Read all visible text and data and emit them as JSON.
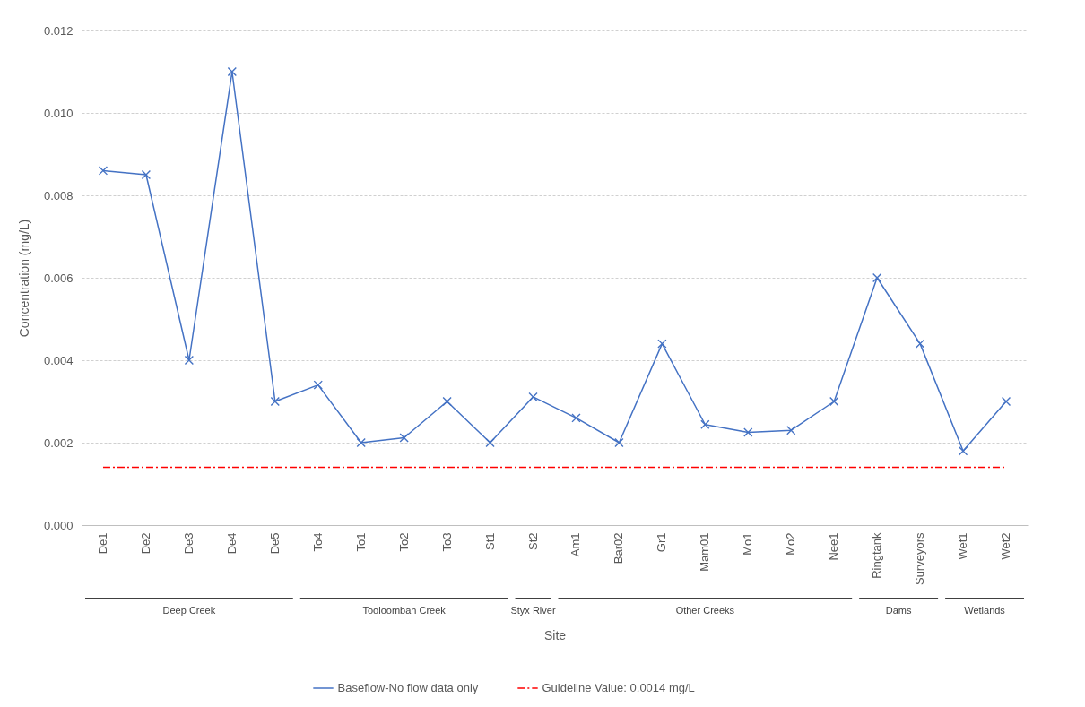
{
  "chart_data": {
    "type": "line",
    "categories": [
      "De1",
      "De2",
      "De3",
      "De4",
      "De5",
      "To4",
      "To1",
      "To2",
      "To3",
      "St1",
      "St2",
      "Am1",
      "Bar02",
      "Gr1",
      "Mam01",
      "Mo1",
      "Mo2",
      "Nee1",
      "Ringtank",
      "Surveyors",
      "Wet1",
      "Wet2"
    ],
    "series": [
      {
        "name": "Baseflow-No flow data only",
        "color": "#4472c4",
        "values": [
          0.0086,
          0.0085,
          0.004,
          0.011,
          0.003,
          0.0034,
          0.002,
          0.00212,
          0.003,
          0.002,
          0.00311,
          0.0026,
          0.002,
          0.0044,
          0.00244,
          0.00225,
          0.0023,
          0.003,
          0.006,
          0.0044,
          0.0018,
          0.003
        ]
      }
    ],
    "xlabel": "Site",
    "ylabel": "Concentration (mg/L)",
    "ylim": [
      0,
      0.012
    ],
    "yticks": [
      {
        "value": 0,
        "label": "0.000"
      },
      {
        "value": 0.002,
        "label": "0.002"
      },
      {
        "value": 0.004,
        "label": "0.004"
      },
      {
        "value": 0.006,
        "label": "0.006"
      },
      {
        "value": 0.008,
        "label": "0.008"
      },
      {
        "value": 0.01,
        "label": "0.010"
      },
      {
        "value": 0.012,
        "label": "0.012"
      }
    ],
    "ref_lines": [
      {
        "axis": "y",
        "value": 0.0014,
        "label": "Guideline Value: 0.0014 mg/L",
        "color": "#ff0000",
        "line_style": "dashdot"
      }
    ],
    "annotations": [
      "Deep Creek",
      "Tooloombah Creek",
      "Styx River",
      "Other Creeks",
      "Dams",
      "Wetlands"
    ],
    "grid": "y",
    "legend": "bottom",
    "marker": "cross",
    "line_style": "solid"
  }
}
